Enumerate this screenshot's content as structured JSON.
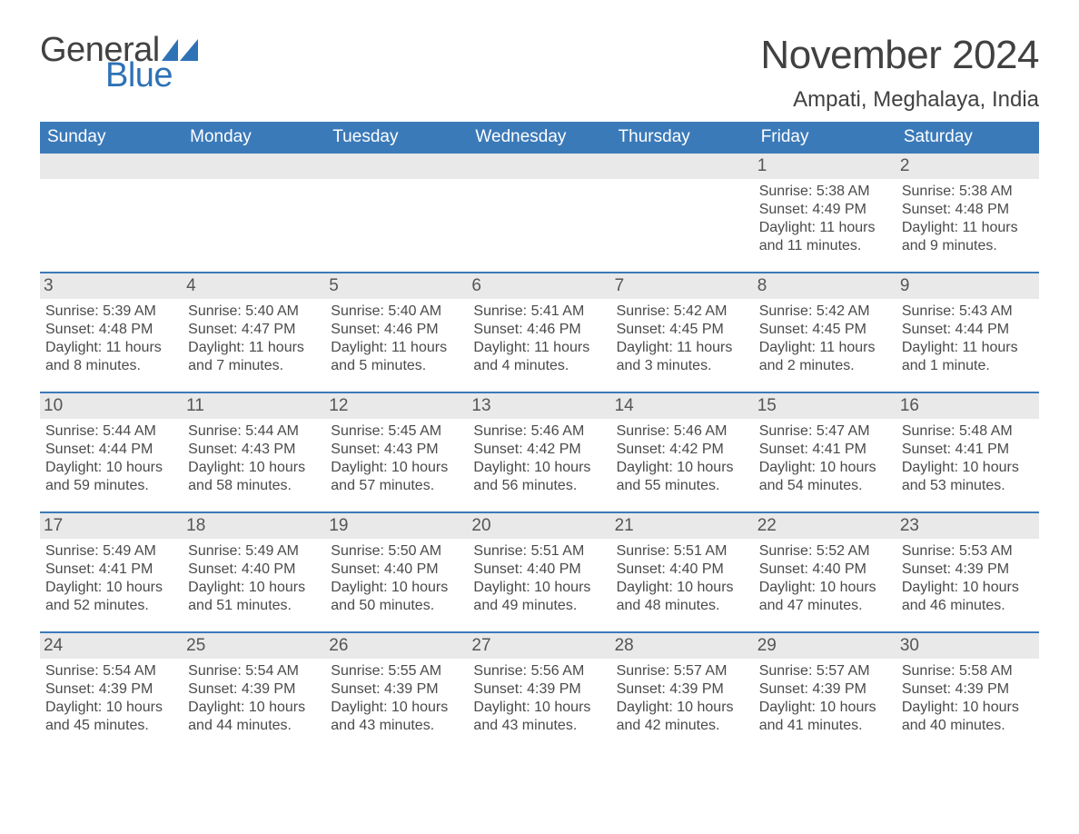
{
  "logo": {
    "word1": "General",
    "word2": "Blue",
    "tri_color": "#2e72b6"
  },
  "header": {
    "month_title": "November 2024",
    "location": "Ampati, Meghalaya, India"
  },
  "labels": {
    "sunrise_prefix": "Sunrise: ",
    "sunset_prefix": "Sunset: ",
    "daylight_prefix": "Daylight: "
  },
  "dayheads": [
    "Sunday",
    "Monday",
    "Tuesday",
    "Wednesday",
    "Thursday",
    "Friday",
    "Saturday"
  ],
  "colors": {
    "header_bg": "#3b7ab9",
    "header_text": "#ffffff",
    "week_divider": "#3b7ab9",
    "daynum_bg": "#e9e9e9",
    "text": "#4a4a4a",
    "title_text": "#414141",
    "logo_blue": "#2e72b6"
  },
  "typography": {
    "month_title_pt": 44,
    "location_pt": 24,
    "dayhead_pt": 19,
    "daynum_pt": 19,
    "detail_pt": 16,
    "logo_pt": 38
  },
  "weeks": [
    [
      null,
      null,
      null,
      null,
      null,
      {
        "n": "1",
        "sunrise": "5:38 AM",
        "sunset": "4:49 PM",
        "daylight": "11 hours and 11 minutes."
      },
      {
        "n": "2",
        "sunrise": "5:38 AM",
        "sunset": "4:48 PM",
        "daylight": "11 hours and 9 minutes."
      }
    ],
    [
      {
        "n": "3",
        "sunrise": "5:39 AM",
        "sunset": "4:48 PM",
        "daylight": "11 hours and 8 minutes."
      },
      {
        "n": "4",
        "sunrise": "5:40 AM",
        "sunset": "4:47 PM",
        "daylight": "11 hours and 7 minutes."
      },
      {
        "n": "5",
        "sunrise": "5:40 AM",
        "sunset": "4:46 PM",
        "daylight": "11 hours and 5 minutes."
      },
      {
        "n": "6",
        "sunrise": "5:41 AM",
        "sunset": "4:46 PM",
        "daylight": "11 hours and 4 minutes."
      },
      {
        "n": "7",
        "sunrise": "5:42 AM",
        "sunset": "4:45 PM",
        "daylight": "11 hours and 3 minutes."
      },
      {
        "n": "8",
        "sunrise": "5:42 AM",
        "sunset": "4:45 PM",
        "daylight": "11 hours and 2 minutes."
      },
      {
        "n": "9",
        "sunrise": "5:43 AM",
        "sunset": "4:44 PM",
        "daylight": "11 hours and 1 minute."
      }
    ],
    [
      {
        "n": "10",
        "sunrise": "5:44 AM",
        "sunset": "4:44 PM",
        "daylight": "10 hours and 59 minutes."
      },
      {
        "n": "11",
        "sunrise": "5:44 AM",
        "sunset": "4:43 PM",
        "daylight": "10 hours and 58 minutes."
      },
      {
        "n": "12",
        "sunrise": "5:45 AM",
        "sunset": "4:43 PM",
        "daylight": "10 hours and 57 minutes."
      },
      {
        "n": "13",
        "sunrise": "5:46 AM",
        "sunset": "4:42 PM",
        "daylight": "10 hours and 56 minutes."
      },
      {
        "n": "14",
        "sunrise": "5:46 AM",
        "sunset": "4:42 PM",
        "daylight": "10 hours and 55 minutes."
      },
      {
        "n": "15",
        "sunrise": "5:47 AM",
        "sunset": "4:41 PM",
        "daylight": "10 hours and 54 minutes."
      },
      {
        "n": "16",
        "sunrise": "5:48 AM",
        "sunset": "4:41 PM",
        "daylight": "10 hours and 53 minutes."
      }
    ],
    [
      {
        "n": "17",
        "sunrise": "5:49 AM",
        "sunset": "4:41 PM",
        "daylight": "10 hours and 52 minutes."
      },
      {
        "n": "18",
        "sunrise": "5:49 AM",
        "sunset": "4:40 PM",
        "daylight": "10 hours and 51 minutes."
      },
      {
        "n": "19",
        "sunrise": "5:50 AM",
        "sunset": "4:40 PM",
        "daylight": "10 hours and 50 minutes."
      },
      {
        "n": "20",
        "sunrise": "5:51 AM",
        "sunset": "4:40 PM",
        "daylight": "10 hours and 49 minutes."
      },
      {
        "n": "21",
        "sunrise": "5:51 AM",
        "sunset": "4:40 PM",
        "daylight": "10 hours and 48 minutes."
      },
      {
        "n": "22",
        "sunrise": "5:52 AM",
        "sunset": "4:40 PM",
        "daylight": "10 hours and 47 minutes."
      },
      {
        "n": "23",
        "sunrise": "5:53 AM",
        "sunset": "4:39 PM",
        "daylight": "10 hours and 46 minutes."
      }
    ],
    [
      {
        "n": "24",
        "sunrise": "5:54 AM",
        "sunset": "4:39 PM",
        "daylight": "10 hours and 45 minutes."
      },
      {
        "n": "25",
        "sunrise": "5:54 AM",
        "sunset": "4:39 PM",
        "daylight": "10 hours and 44 minutes."
      },
      {
        "n": "26",
        "sunrise": "5:55 AM",
        "sunset": "4:39 PM",
        "daylight": "10 hours and 43 minutes."
      },
      {
        "n": "27",
        "sunrise": "5:56 AM",
        "sunset": "4:39 PM",
        "daylight": "10 hours and 43 minutes."
      },
      {
        "n": "28",
        "sunrise": "5:57 AM",
        "sunset": "4:39 PM",
        "daylight": "10 hours and 42 minutes."
      },
      {
        "n": "29",
        "sunrise": "5:57 AM",
        "sunset": "4:39 PM",
        "daylight": "10 hours and 41 minutes."
      },
      {
        "n": "30",
        "sunrise": "5:58 AM",
        "sunset": "4:39 PM",
        "daylight": "10 hours and 40 minutes."
      }
    ]
  ]
}
